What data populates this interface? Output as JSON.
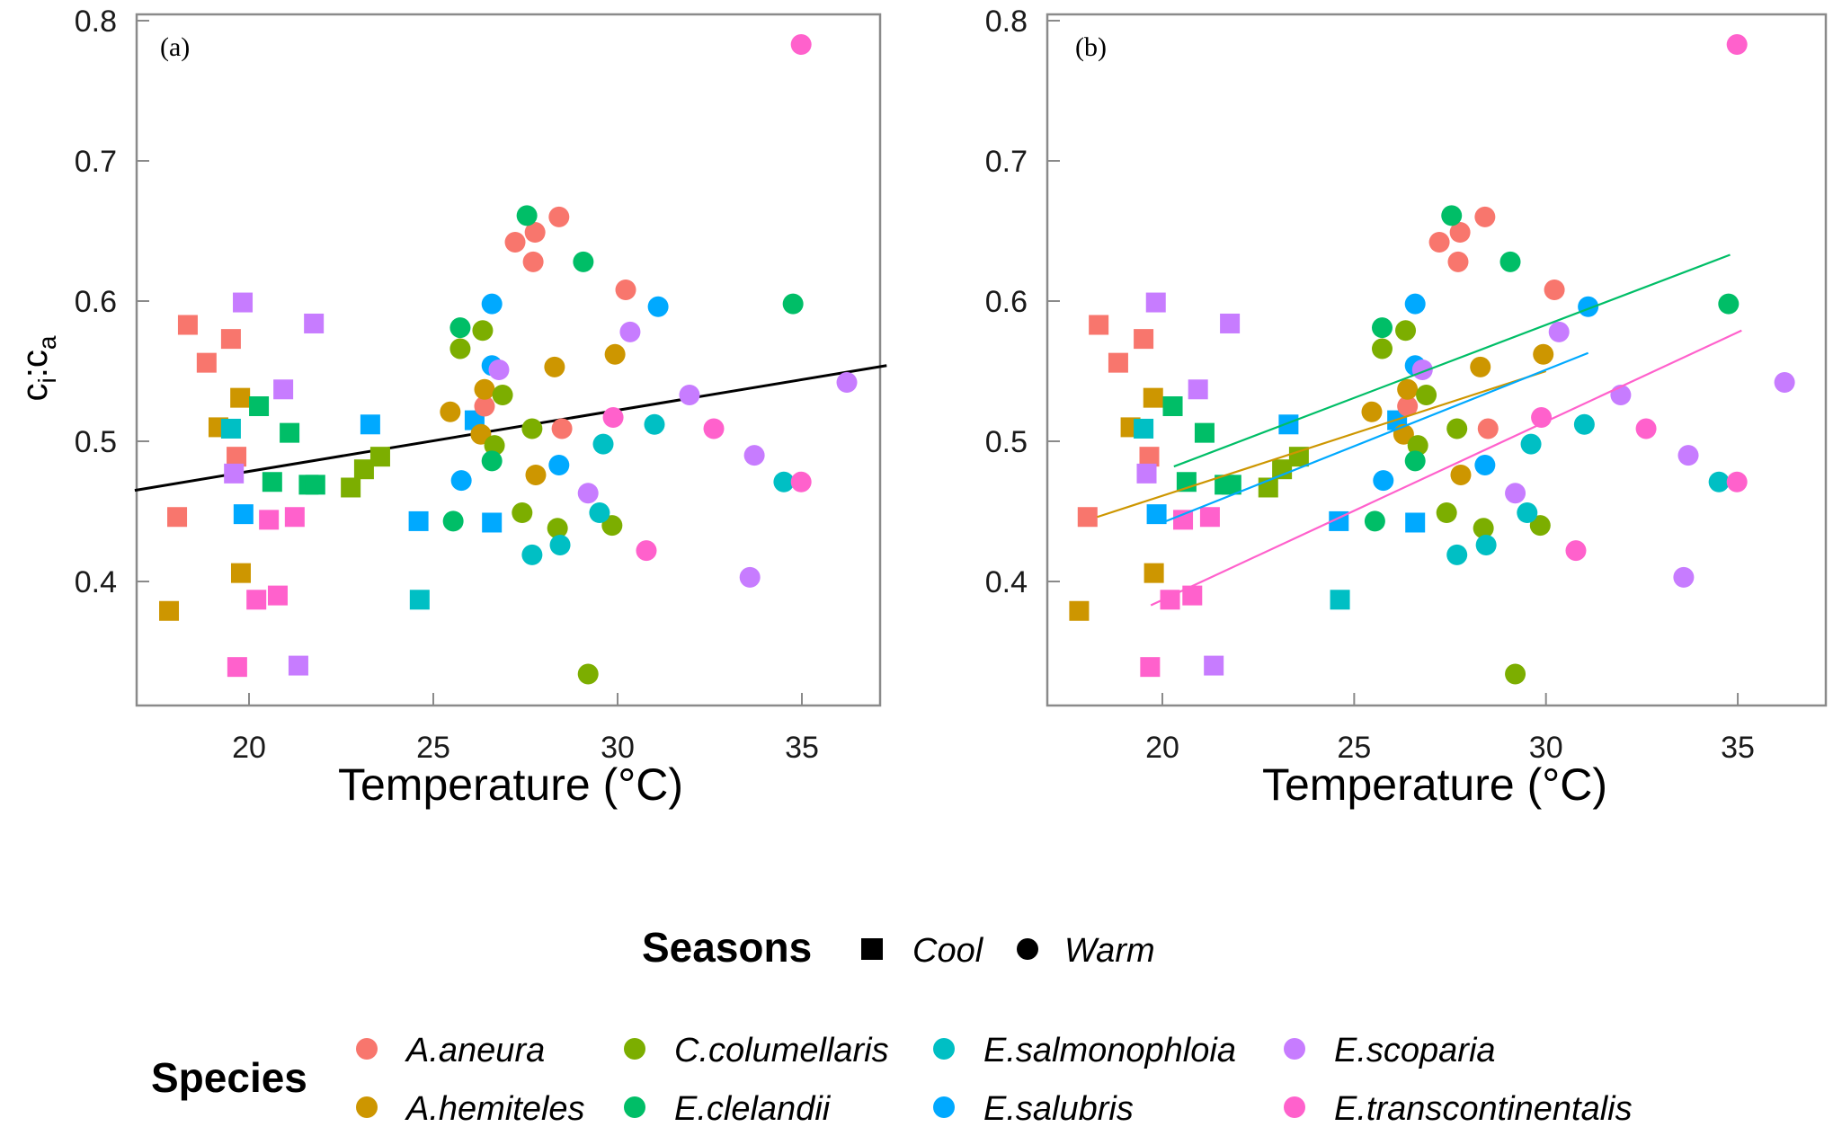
{
  "chart_data": [
    {
      "type": "scatter",
      "panel_label": "(a)",
      "xlabel": "Temperature (°C)",
      "ylabel": "ci:ca",
      "xlim": [
        16.9,
        37.3
      ],
      "ylim": [
        0.31,
        0.805
      ],
      "xticks": [
        20,
        25,
        30,
        35
      ],
      "yticks": [
        0.4,
        0.5,
        0.6,
        0.7,
        0.8
      ],
      "ytick_labels": [
        "0.4",
        "0.5",
        "0.6",
        "0.7",
        "0.8"
      ],
      "grid": false,
      "fit_lines": [
        {
          "name": "overall",
          "color": "#000000",
          "x": [
            16.9,
            37.3
          ],
          "y": [
            0.465,
            0.554
          ]
        }
      ]
    },
    {
      "type": "scatter",
      "panel_label": "(b)",
      "xlabel": "Temperature (°C)",
      "ylabel": "",
      "xlim": [
        16.9,
        37.3
      ],
      "ylim": [
        0.31,
        0.805
      ],
      "xticks": [
        20,
        25,
        30,
        35
      ],
      "yticks": [
        0.4,
        0.5,
        0.6,
        0.7,
        0.8
      ],
      "ytick_labels": [
        "0.4",
        "0.5",
        "0.6",
        "0.7",
        "0.8"
      ],
      "grid": false,
      "fit_lines": [
        {
          "name": "E.clelandii",
          "color": "#00BE67",
          "x": [
            20.3,
            34.8
          ],
          "y": [
            0.482,
            0.633
          ]
        },
        {
          "name": "A.hemiteles",
          "color": "#CD9600",
          "x": [
            18.3,
            30.0
          ],
          "y": [
            0.446,
            0.55
          ]
        },
        {
          "name": "E.salubris",
          "color": "#00A9FF",
          "x": [
            20.0,
            31.1
          ],
          "y": [
            0.442,
            0.563
          ]
        },
        {
          "name": "E.transcontinentalis",
          "color": "#FF61CC",
          "x": [
            19.7,
            35.1
          ],
          "y": [
            0.383,
            0.579
          ]
        }
      ]
    }
  ],
  "points": [
    {
      "sp": "A.aneura",
      "season": "Cool",
      "x": 18.34,
      "y": 0.583
    },
    {
      "sp": "A.aneura",
      "season": "Cool",
      "x": 19.51,
      "y": 0.573
    },
    {
      "sp": "A.aneura",
      "season": "Cool",
      "x": 18.85,
      "y": 0.556
    },
    {
      "sp": "A.aneura",
      "season": "Cool",
      "x": 19.66,
      "y": 0.489
    },
    {
      "sp": "A.aneura",
      "season": "Cool",
      "x": 18.05,
      "y": 0.446
    },
    {
      "sp": "A.hemiteles",
      "season": "Cool",
      "x": 19.76,
      "y": 0.531
    },
    {
      "sp": "A.hemiteles",
      "season": "Cool",
      "x": 19.17,
      "y": 0.51
    },
    {
      "sp": "A.hemiteles",
      "season": "Cool",
      "x": 19.78,
      "y": 0.406
    },
    {
      "sp": "A.hemiteles",
      "season": "Cool",
      "x": 17.83,
      "y": 0.379
    },
    {
      "sp": "C.columellaris",
      "season": "Cool",
      "x": 22.76,
      "y": 0.467
    },
    {
      "sp": "C.columellaris",
      "season": "Cool",
      "x": 23.12,
      "y": 0.48
    },
    {
      "sp": "C.columellaris",
      "season": "Cool",
      "x": 23.56,
      "y": 0.489
    },
    {
      "sp": "E.clelandii",
      "season": "Cool",
      "x": 20.27,
      "y": 0.525
    },
    {
      "sp": "E.clelandii",
      "season": "Cool",
      "x": 21.1,
      "y": 0.506
    },
    {
      "sp": "E.clelandii",
      "season": "Cool",
      "x": 20.63,
      "y": 0.471
    },
    {
      "sp": "E.clelandii",
      "season": "Cool",
      "x": 21.62,
      "y": 0.469
    },
    {
      "sp": "E.clelandii",
      "season": "Cool",
      "x": 21.8,
      "y": 0.469
    },
    {
      "sp": "E.salmonophloia",
      "season": "Cool",
      "x": 19.51,
      "y": 0.509
    },
    {
      "sp": "E.salmonophloia",
      "season": "Cool",
      "x": 24.63,
      "y": 0.387
    },
    {
      "sp": "E.salubris",
      "season": "Cool",
      "x": 23.29,
      "y": 0.512
    },
    {
      "sp": "E.salubris",
      "season": "Cool",
      "x": 19.85,
      "y": 0.448
    },
    {
      "sp": "E.salubris",
      "season": "Cool",
      "x": 26.12,
      "y": 0.515
    },
    {
      "sp": "E.salubris",
      "season": "Cool",
      "x": 24.6,
      "y": 0.443
    },
    {
      "sp": "E.salubris",
      "season": "Cool",
      "x": 26.59,
      "y": 0.442
    },
    {
      "sp": "E.scoparia",
      "season": "Cool",
      "x": 19.83,
      "y": 0.599
    },
    {
      "sp": "E.scoparia",
      "season": "Cool",
      "x": 21.76,
      "y": 0.584
    },
    {
      "sp": "E.scoparia",
      "season": "Cool",
      "x": 20.93,
      "y": 0.537
    },
    {
      "sp": "E.scoparia",
      "season": "Cool",
      "x": 19.59,
      "y": 0.477
    },
    {
      "sp": "E.scoparia",
      "season": "Cool",
      "x": 21.34,
      "y": 0.34
    },
    {
      "sp": "E.transcontinentalis",
      "season": "Cool",
      "x": 20.54,
      "y": 0.444
    },
    {
      "sp": "E.transcontinentalis",
      "season": "Cool",
      "x": 21.24,
      "y": 0.446
    },
    {
      "sp": "E.transcontinentalis",
      "season": "Cool",
      "x": 20.2,
      "y": 0.387
    },
    {
      "sp": "E.transcontinentalis",
      "season": "Cool",
      "x": 20.78,
      "y": 0.39
    },
    {
      "sp": "E.transcontinentalis",
      "season": "Cool",
      "x": 19.68,
      "y": 0.339
    },
    {
      "sp": "A.aneura",
      "season": "Warm",
      "x": 28.41,
      "y": 0.66
    },
    {
      "sp": "A.aneura",
      "season": "Warm",
      "x": 27.76,
      "y": 0.649
    },
    {
      "sp": "A.aneura",
      "season": "Warm",
      "x": 27.22,
      "y": 0.642
    },
    {
      "sp": "A.aneura",
      "season": "Warm",
      "x": 27.71,
      "y": 0.628
    },
    {
      "sp": "A.aneura",
      "season": "Warm",
      "x": 30.22,
      "y": 0.608
    },
    {
      "sp": "A.aneura",
      "season": "Warm",
      "x": 26.39,
      "y": 0.525
    },
    {
      "sp": "A.aneura",
      "season": "Warm",
      "x": 28.49,
      "y": 0.509
    },
    {
      "sp": "A.hemiteles",
      "season": "Warm",
      "x": 29.93,
      "y": 0.562
    },
    {
      "sp": "A.hemiteles",
      "season": "Warm",
      "x": 28.29,
      "y": 0.553
    },
    {
      "sp": "A.hemiteles",
      "season": "Warm",
      "x": 26.39,
      "y": 0.537
    },
    {
      "sp": "A.hemiteles",
      "season": "Warm",
      "x": 25.46,
      "y": 0.521
    },
    {
      "sp": "A.hemiteles",
      "season": "Warm",
      "x": 26.29,
      "y": 0.505
    },
    {
      "sp": "A.hemiteles",
      "season": "Warm",
      "x": 27.78,
      "y": 0.476
    },
    {
      "sp": "C.columellaris",
      "season": "Warm",
      "x": 26.34,
      "y": 0.579
    },
    {
      "sp": "C.columellaris",
      "season": "Warm",
      "x": 25.73,
      "y": 0.566
    },
    {
      "sp": "C.columellaris",
      "season": "Warm",
      "x": 26.88,
      "y": 0.533
    },
    {
      "sp": "C.columellaris",
      "season": "Warm",
      "x": 27.68,
      "y": 0.509
    },
    {
      "sp": "C.columellaris",
      "season": "Warm",
      "x": 26.66,
      "y": 0.497
    },
    {
      "sp": "C.columellaris",
      "season": "Warm",
      "x": 27.41,
      "y": 0.449
    },
    {
      "sp": "C.columellaris",
      "season": "Warm",
      "x": 29.85,
      "y": 0.44
    },
    {
      "sp": "C.columellaris",
      "season": "Warm",
      "x": 28.37,
      "y": 0.438
    },
    {
      "sp": "C.columellaris",
      "season": "Warm",
      "x": 29.2,
      "y": 0.334
    },
    {
      "sp": "E.clelandii",
      "season": "Warm",
      "x": 27.54,
      "y": 0.661
    },
    {
      "sp": "E.clelandii",
      "season": "Warm",
      "x": 29.07,
      "y": 0.628
    },
    {
      "sp": "E.clelandii",
      "season": "Warm",
      "x": 25.73,
      "y": 0.581
    },
    {
      "sp": "E.clelandii",
      "season": "Warm",
      "x": 34.76,
      "y": 0.598
    },
    {
      "sp": "E.clelandii",
      "season": "Warm",
      "x": 26.59,
      "y": 0.486
    },
    {
      "sp": "E.clelandii",
      "season": "Warm",
      "x": 25.54,
      "y": 0.443
    },
    {
      "sp": "E.salmonophloia",
      "season": "Warm",
      "x": 31.0,
      "y": 0.512
    },
    {
      "sp": "E.salmonophloia",
      "season": "Warm",
      "x": 29.61,
      "y": 0.498
    },
    {
      "sp": "E.salmonophloia",
      "season": "Warm",
      "x": 29.51,
      "y": 0.449
    },
    {
      "sp": "E.salmonophloia",
      "season": "Warm",
      "x": 28.44,
      "y": 0.426
    },
    {
      "sp": "E.salmonophloia",
      "season": "Warm",
      "x": 27.68,
      "y": 0.419
    },
    {
      "sp": "E.salmonophloia",
      "season": "Warm",
      "x": 34.51,
      "y": 0.471
    },
    {
      "sp": "E.salubris",
      "season": "Warm",
      "x": 26.59,
      "y": 0.598
    },
    {
      "sp": "E.salubris",
      "season": "Warm",
      "x": 31.1,
      "y": 0.596
    },
    {
      "sp": "E.salubris",
      "season": "Warm",
      "x": 26.59,
      "y": 0.554
    },
    {
      "sp": "E.salubris",
      "season": "Warm",
      "x": 28.41,
      "y": 0.483
    },
    {
      "sp": "E.salubris",
      "season": "Warm",
      "x": 25.76,
      "y": 0.472
    },
    {
      "sp": "E.scoparia",
      "season": "Warm",
      "x": 30.34,
      "y": 0.578
    },
    {
      "sp": "E.scoparia",
      "season": "Warm",
      "x": 26.78,
      "y": 0.551
    },
    {
      "sp": "E.scoparia",
      "season": "Warm",
      "x": 31.95,
      "y": 0.533
    },
    {
      "sp": "E.scoparia",
      "season": "Warm",
      "x": 36.22,
      "y": 0.542
    },
    {
      "sp": "E.scoparia",
      "season": "Warm",
      "x": 33.71,
      "y": 0.49
    },
    {
      "sp": "E.scoparia",
      "season": "Warm",
      "x": 29.2,
      "y": 0.463
    },
    {
      "sp": "E.scoparia",
      "season": "Warm",
      "x": 33.59,
      "y": 0.403
    },
    {
      "sp": "E.transcontinentalis",
      "season": "Warm",
      "x": 34.98,
      "y": 0.783
    },
    {
      "sp": "E.transcontinentalis",
      "season": "Warm",
      "x": 29.88,
      "y": 0.517
    },
    {
      "sp": "E.transcontinentalis",
      "season": "Warm",
      "x": 32.61,
      "y": 0.509
    },
    {
      "sp": "E.transcontinentalis",
      "season": "Warm",
      "x": 34.98,
      "y": 0.471
    },
    {
      "sp": "E.transcontinentalis",
      "season": "Warm",
      "x": 30.78,
      "y": 0.422
    }
  ],
  "species_colors": {
    "A.aneura": "#F8766D",
    "A.hemiteles": "#CD9600",
    "C.columellaris": "#7CAE00",
    "E.clelandii": "#00BE67",
    "E.salmonophloia": "#00BFC4",
    "E.salubris": "#00A9FF",
    "E.scoparia": "#C77CFF",
    "E.transcontinentalis": "#FF61CC"
  },
  "legend": {
    "seasons_title": "Seasons",
    "seasons": [
      {
        "label": "Cool",
        "shape": "square"
      },
      {
        "label": "Warm",
        "shape": "circle"
      }
    ],
    "species_title": "Species",
    "species": [
      {
        "label": "A.aneura"
      },
      {
        "label": "A.hemiteles"
      },
      {
        "label": "C.columellaris"
      },
      {
        "label": "E.clelandii"
      },
      {
        "label": "E.salmonophloia"
      },
      {
        "label": "E.salubris"
      },
      {
        "label": "E.scoparia"
      },
      {
        "label": "E.transcontinentalis"
      }
    ]
  },
  "ylabel_parts": {
    "c1": "c",
    "sub1": "i",
    "colon": ":",
    "c2": "c",
    "sub2": "a"
  }
}
